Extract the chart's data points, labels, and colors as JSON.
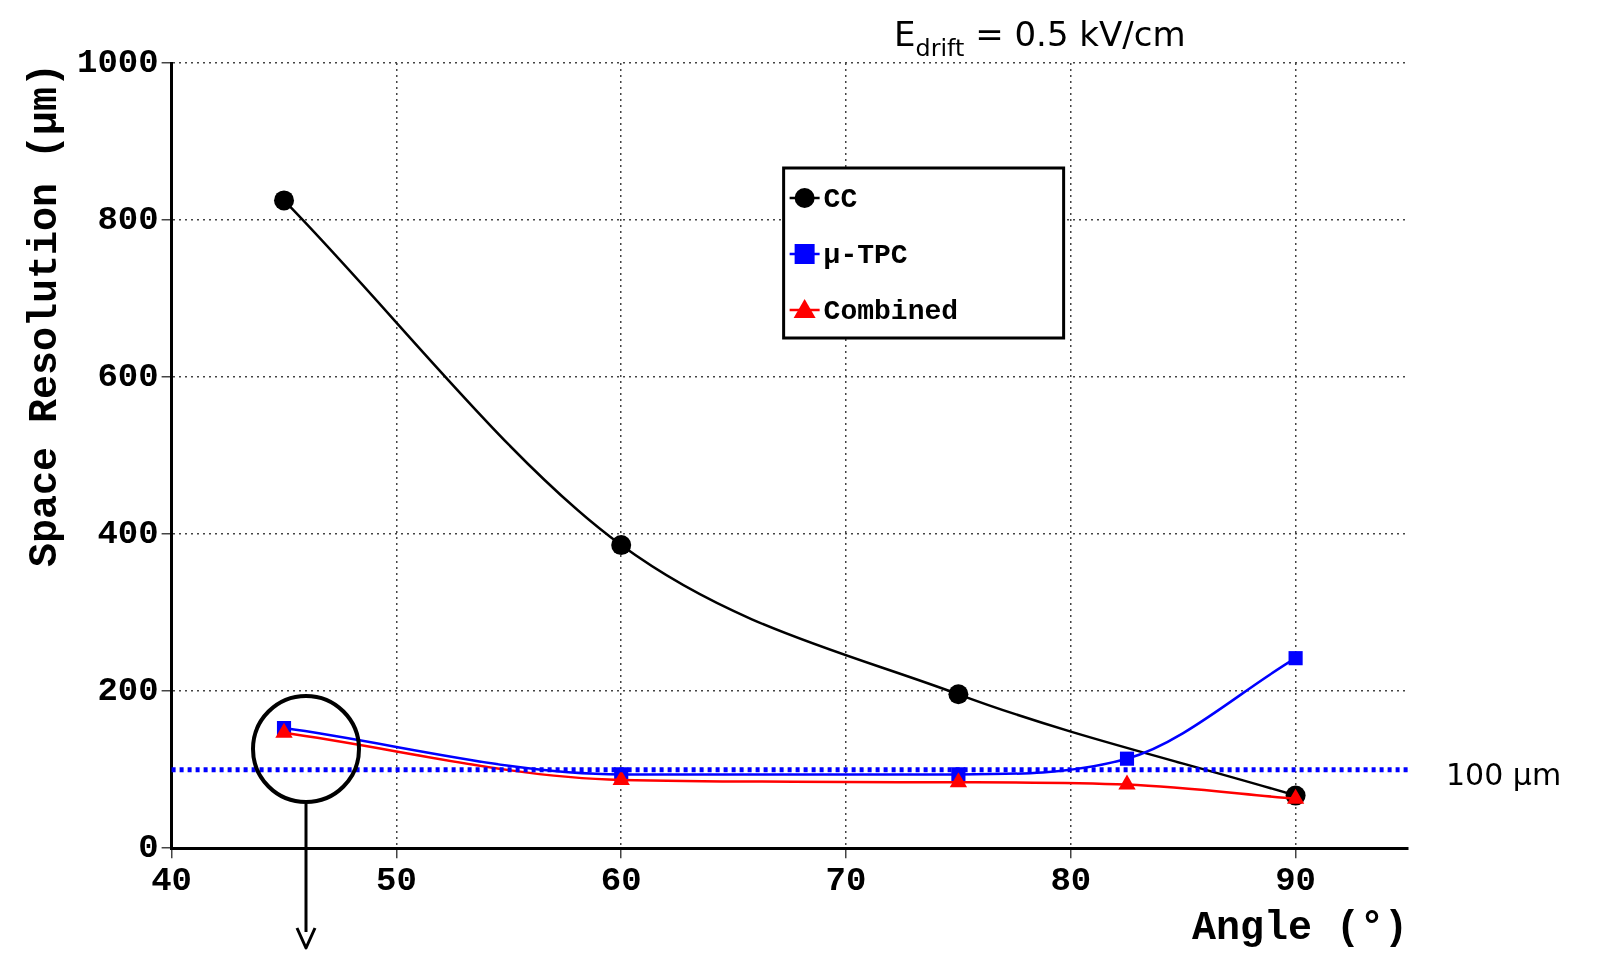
{
  "chart_data": {
    "type": "line",
    "title": "E$_{drift}$ = 0.5 kV/cm",
    "xlabel": "Angle (°)",
    "ylabel": "Space Resolution (µm)",
    "x": [
      45,
      60,
      75,
      82.5,
      90
    ],
    "series": [
      {
        "name": "CC",
        "color": "#000000",
        "marker": "circle",
        "x": [
          45,
          60,
          75,
          90
        ],
        "values": [
          825,
          386,
          196,
          67
        ]
      },
      {
        "name": "µ-TPC",
        "color": "#0000ff",
        "marker": "square",
        "values": [
          153,
          94,
          94,
          114,
          242
        ]
      },
      {
        "name": "Combined",
        "color": "#ff0000",
        "marker": "triangle",
        "values": [
          147,
          87,
          84,
          81,
          63
        ]
      }
    ],
    "xlim": [
      40,
      95
    ],
    "xticks": [
      40,
      50,
      60,
      70,
      80,
      90
    ],
    "ylim": [
      0,
      1000
    ],
    "yticks": [
      0,
      200,
      400,
      600,
      800,
      1000
    ],
    "ref_lines": [
      {
        "axis": "y",
        "value": 100,
        "label": "100 µm",
        "color": "#0000ff",
        "line_style": "dotted"
      }
    ],
    "grid": true,
    "legend": "top right",
    "line_style": "solid"
  }
}
